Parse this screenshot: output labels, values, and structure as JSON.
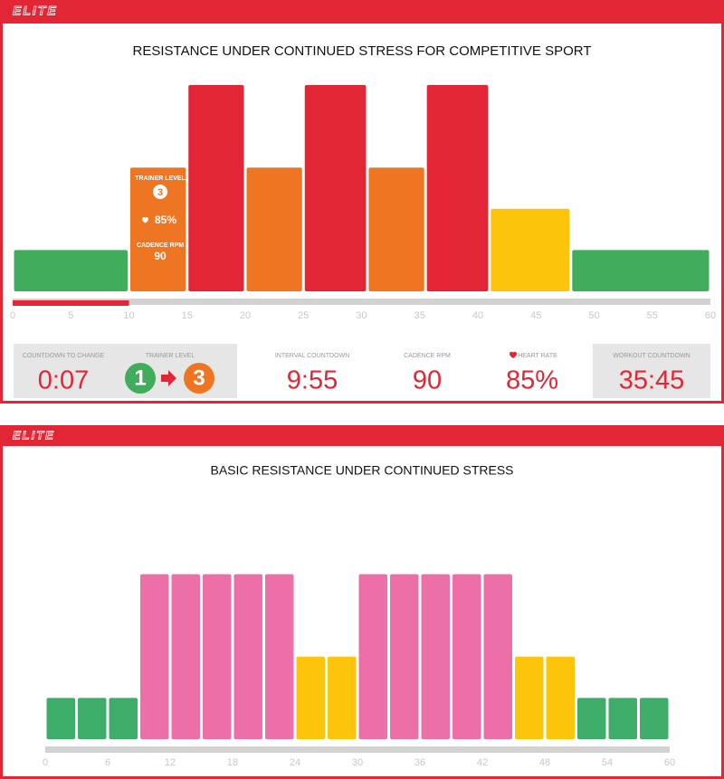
{
  "brand": "ELITE",
  "chart_data": [
    {
      "type": "histogram",
      "title": "RESISTANCE UNDER CONTINUED STRESS FOR COMPETITIVE SPORT",
      "bins": [
        0,
        10,
        15,
        20,
        25,
        30.5,
        35.5,
        41,
        48,
        60
      ],
      "values": [
        1,
        3,
        5,
        3,
        5,
        3,
        5,
        2,
        1
      ],
      "colors": [
        "#3fad5c",
        "#ee7623",
        "#e32636",
        "#ee7623",
        "#e32636",
        "#ee7623",
        "#e32636",
        "#fcc40a",
        "#3fad5c"
      ],
      "xlim": [
        0,
        60
      ],
      "xticks": [
        0,
        5,
        10,
        15,
        20,
        25,
        30,
        35,
        40,
        45,
        50,
        55,
        60
      ],
      "progress": 10,
      "progress_color": "#e32636"
    },
    {
      "type": "histogram",
      "title": "BASIC RESISTANCE UNDER CONTINUED STRESS",
      "bins": [
        0,
        3,
        6,
        9,
        12,
        15,
        18,
        21,
        24,
        27,
        30,
        33,
        36,
        39,
        42,
        45,
        48,
        51,
        54,
        57,
        60
      ],
      "values": [
        1,
        1,
        1,
        4,
        4,
        4,
        4,
        4,
        2,
        2,
        4,
        4,
        4,
        4,
        4,
        2,
        2,
        1,
        1,
        1
      ],
      "colors": [
        "#3fad6a",
        "#3fad6a",
        "#3fad6a",
        "#ec6fa7",
        "#ec6fa7",
        "#ec6fa7",
        "#ec6fa7",
        "#ec6fa7",
        "#fcc40a",
        "#fcc40a",
        "#ec6fa7",
        "#ec6fa7",
        "#ec6fa7",
        "#ec6fa7",
        "#ec6fa7",
        "#fcc40a",
        "#fcc40a",
        "#3fad6a",
        "#3fad6a",
        "#3fad6a"
      ],
      "xlim": [
        0,
        60
      ],
      "xticks": [
        0,
        6,
        12,
        18,
        24,
        30,
        36,
        42,
        48,
        54,
        60
      ]
    }
  ],
  "overlay": {
    "trainer_label": "TRAINER LEVEL",
    "trainer_value": "3",
    "heart_value": "85%",
    "cadence_label": "CADENCE RPM",
    "cadence_value": "90"
  },
  "panel": {
    "countdown_label": "COUNTDOWN TO CHANGE",
    "countdown_value": "0:07",
    "trainer_label": "TRAINER LEVEL",
    "trainer_from": "1",
    "trainer_to": "3",
    "interval_label": "INTERVAL COUNTDOWN",
    "interval_value": "9:55",
    "cadence_label": "CADENCE RPM",
    "cadence_value": "90",
    "heart_label": "HEART RATE",
    "heart_value": "85%",
    "workout_label": "WORKOUT COUNTDOWN",
    "workout_value": "35:45"
  }
}
